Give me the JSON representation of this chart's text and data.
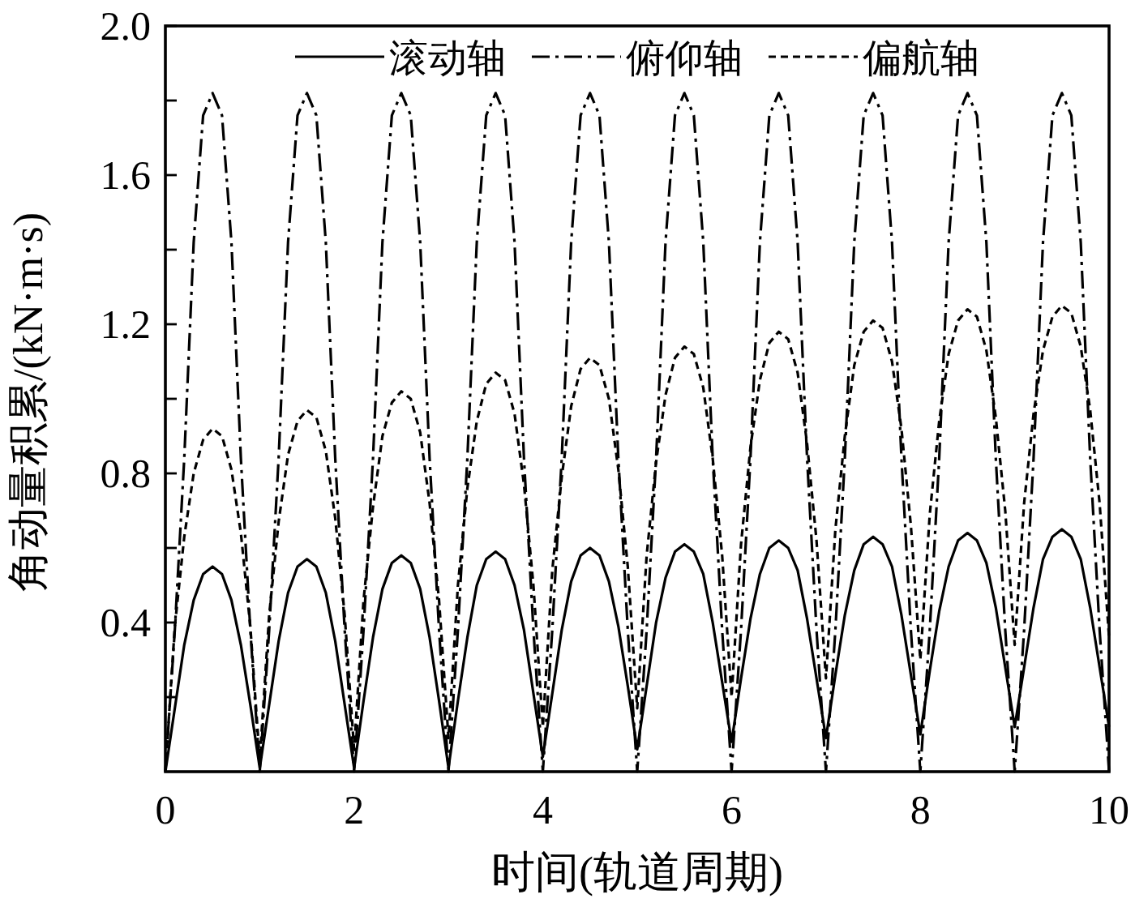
{
  "chart_data": {
    "type": "line",
    "xlabel": "时间(轨道周期)",
    "ylabel": "角动量积累/(kN·m·s)",
    "xlim": [
      0,
      10
    ],
    "ylim": [
      0,
      2
    ],
    "xticks": [
      0,
      2,
      4,
      6,
      8,
      10
    ],
    "yticks": [
      {
        "value": 0.2,
        "label": null
      },
      0.4,
      {
        "value": 0.6,
        "label": null
      },
      0.8,
      {
        "value": 1.0,
        "label": null
      },
      1.2,
      {
        "value": 1.4,
        "label": null
      },
      1.6,
      {
        "value": 1.8,
        "label": null
      },
      {
        "value": 2,
        "label": "2.0"
      }
    ],
    "legend": "top",
    "x": [
      0,
      0.1,
      0.2,
      0.3,
      0.4,
      0.5,
      0.6,
      0.7,
      0.8,
      0.9,
      1,
      1.1,
      1.2,
      1.3,
      1.4,
      1.5,
      1.6,
      1.7,
      1.8,
      1.9,
      2,
      2.1,
      2.2,
      2.3,
      2.4,
      2.5,
      2.6,
      2.7,
      2.8,
      2.9,
      3,
      3.1,
      3.2,
      3.3,
      3.4,
      3.5,
      3.6,
      3.7,
      3.8,
      3.9,
      4,
      4.1,
      4.2,
      4.3,
      4.4,
      4.5,
      4.6,
      4.7,
      4.8,
      4.9,
      5,
      5.1,
      5.2,
      5.3,
      5.4,
      5.5,
      5.6,
      5.7,
      5.8,
      5.9,
      6,
      6.1,
      6.2,
      6.3,
      6.4,
      6.5,
      6.6,
      6.7,
      6.8,
      6.9,
      7,
      7.1,
      7.2,
      7.3,
      7.4,
      7.5,
      7.6,
      7.7,
      7.8,
      7.9,
      8,
      8.1,
      8.2,
      8.3,
      8.4,
      8.5,
      8.6,
      8.7,
      8.8,
      8.9,
      9,
      9.1,
      9.2,
      9.3,
      9.4,
      9.5,
      9.6,
      9.7,
      9.8,
      9.9,
      10
    ],
    "series": [
      {
        "name": "滚动轴",
        "color": "#000000",
        "line_style": "solid",
        "values": [
          0,
          0.17,
          0.34,
          0.46,
          0.53,
          0.55,
          0.53,
          0.46,
          0.34,
          0.18,
          0.01,
          0.18,
          0.35,
          0.48,
          0.55,
          0.57,
          0.55,
          0.48,
          0.35,
          0.18,
          0.01,
          0.19,
          0.36,
          0.49,
          0.56,
          0.58,
          0.56,
          0.49,
          0.36,
          0.19,
          0.01,
          0.19,
          0.36,
          0.5,
          0.57,
          0.59,
          0.57,
          0.5,
          0.38,
          0.21,
          0.04,
          0.21,
          0.38,
          0.51,
          0.58,
          0.6,
          0.58,
          0.51,
          0.39,
          0.23,
          0.06,
          0.23,
          0.4,
          0.52,
          0.59,
          0.61,
          0.59,
          0.53,
          0.4,
          0.24,
          0.08,
          0.25,
          0.41,
          0.53,
          0.6,
          0.62,
          0.6,
          0.54,
          0.41,
          0.25,
          0.09,
          0.26,
          0.42,
          0.54,
          0.61,
          0.63,
          0.61,
          0.55,
          0.42,
          0.26,
          0.1,
          0.27,
          0.43,
          0.55,
          0.62,
          0.64,
          0.62,
          0.56,
          0.44,
          0.28,
          0.12,
          0.28,
          0.44,
          0.57,
          0.63,
          0.65,
          0.63,
          0.57,
          0.44,
          0.28,
          0.12
        ]
      },
      {
        "name": "俯仰轴",
        "color": "#000000",
        "line_style": "dashdot",
        "values": [
          0,
          0.38,
          0.84,
          1.42,
          1.76,
          1.82,
          1.76,
          1.42,
          0.84,
          0.38,
          0,
          0.38,
          0.84,
          1.42,
          1.76,
          1.82,
          1.76,
          1.42,
          0.84,
          0.38,
          0,
          0.38,
          0.84,
          1.42,
          1.76,
          1.82,
          1.76,
          1.42,
          0.84,
          0.38,
          0,
          0.38,
          0.84,
          1.42,
          1.76,
          1.82,
          1.76,
          1.42,
          0.84,
          0.38,
          0,
          0.38,
          0.84,
          1.42,
          1.76,
          1.82,
          1.76,
          1.42,
          0.84,
          0.38,
          0,
          0.38,
          0.84,
          1.42,
          1.76,
          1.82,
          1.76,
          1.42,
          0.84,
          0.38,
          0,
          0.38,
          0.84,
          1.42,
          1.76,
          1.82,
          1.76,
          1.42,
          0.84,
          0.38,
          0,
          0.38,
          0.84,
          1.42,
          1.76,
          1.82,
          1.76,
          1.42,
          0.84,
          0.38,
          0,
          0.38,
          0.84,
          1.42,
          1.76,
          1.82,
          1.76,
          1.42,
          0.84,
          0.38,
          0,
          0.38,
          0.84,
          1.42,
          1.76,
          1.82,
          1.76,
          1.42,
          0.84,
          0.38,
          0
        ]
      },
      {
        "name": "偏航轴",
        "color": "#000000",
        "line_style": "dashed",
        "values": [
          0,
          0.39,
          0.63,
          0.8,
          0.89,
          0.92,
          0.9,
          0.81,
          0.64,
          0.39,
          0.03,
          0.42,
          0.67,
          0.85,
          0.94,
          0.97,
          0.95,
          0.86,
          0.68,
          0.42,
          0.06,
          0.46,
          0.71,
          0.9,
          0.99,
          1.02,
          1.0,
          0.91,
          0.72,
          0.46,
          0.09,
          0.5,
          0.76,
          0.94,
          1.04,
          1.07,
          1.05,
          0.96,
          0.77,
          0.5,
          0.12,
          0.54,
          0.79,
          0.98,
          1.08,
          1.11,
          1.09,
          1.0,
          0.81,
          0.55,
          0.17,
          0.58,
          0.83,
          1.01,
          1.11,
          1.14,
          1.12,
          1.03,
          0.84,
          0.58,
          0.2,
          0.61,
          0.87,
          1.05,
          1.15,
          1.18,
          1.16,
          1.07,
          0.88,
          0.62,
          0.25,
          0.65,
          0.9,
          1.09,
          1.18,
          1.21,
          1.19,
          1.1,
          0.92,
          0.66,
          0.3,
          0.69,
          0.94,
          1.12,
          1.21,
          1.24,
          1.22,
          1.13,
          0.95,
          0.7,
          0.34,
          0.72,
          0.96,
          1.13,
          1.22,
          1.25,
          1.23,
          1.14,
          0.97,
          0.72,
          0.36
        ]
      }
    ]
  }
}
